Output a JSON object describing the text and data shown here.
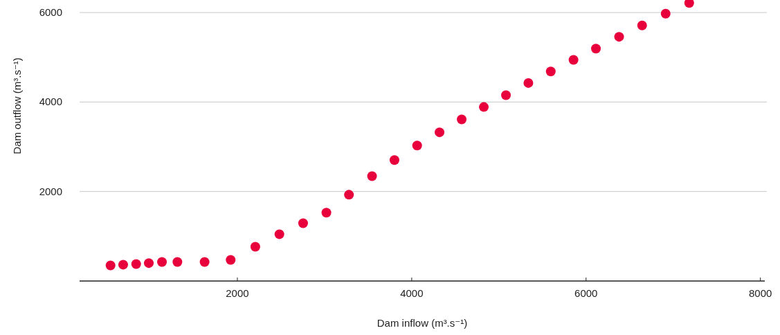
{
  "chart_data": {
    "type": "scatter",
    "xlabel": "Dam inflow (m³.s⁻¹)",
    "ylabel": "Dam outflow (m³.s⁻¹)",
    "xlim": [
      190,
      8050
    ],
    "xticks": [
      2000,
      4000,
      6000,
      8000
    ],
    "ylim": [
      0,
      6280
    ],
    "yticks": [
      2000,
      4000,
      6000
    ],
    "grid": "y",
    "marker": "circle",
    "series": [
      {
        "color": "#e8003d",
        "x": [
          545,
          690,
          839,
          984,
          1135,
          1312,
          1624,
          1923,
          2206,
          2482,
          2754,
          3021,
          3280,
          3545,
          3802,
          4062,
          4319,
          4573,
          4827,
          5081,
          5338,
          5595,
          5856,
          6113,
          6379,
          6643,
          6913,
          7183
        ],
        "values": [
          349,
          365,
          380,
          400,
          426,
          426,
          426,
          472,
          765,
          1046,
          1292,
          1528,
          1928,
          2343,
          2702,
          3028,
          3323,
          3612,
          3889,
          4154,
          4425,
          4683,
          4942,
          5194,
          5458,
          5711,
          5975,
          6215
        ]
      }
    ]
  }
}
